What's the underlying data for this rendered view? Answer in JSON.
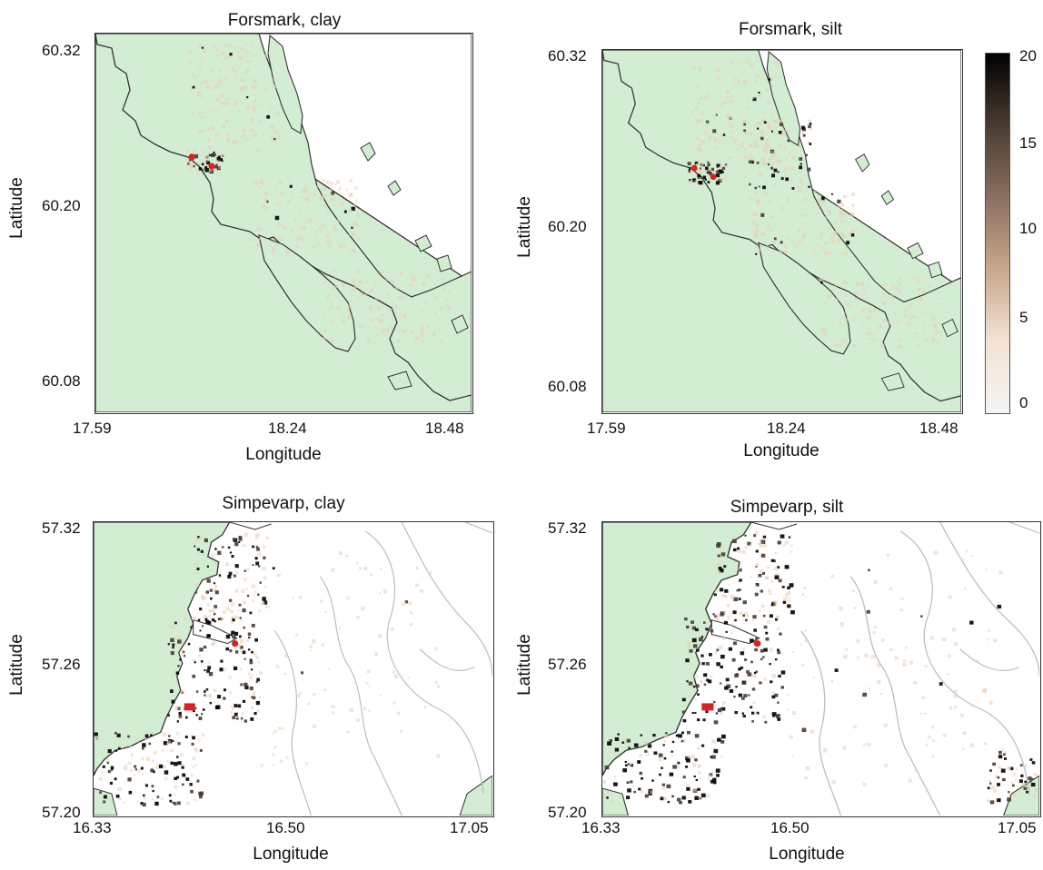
{
  "colors": {
    "land": "#d3edd3",
    "coast": "#333333",
    "site": "#e02020",
    "depth_contour": "#b9bec4"
  },
  "panels": [
    {
      "id": "forsmark-clay",
      "title": "Forsmark, clay",
      "xlabel": "Longitude",
      "ylabel": "Latitude",
      "xticks": [
        "17.59",
        "18.24",
        "18.48"
      ],
      "yticks": [
        "60.32",
        "60.20",
        "60.08"
      ]
    },
    {
      "id": "forsmark-silt",
      "title": "Forsmark, silt",
      "xlabel": "Longitude",
      "ylabel": "Latitude",
      "xticks": [
        "17.59",
        "18.24",
        "18.48"
      ],
      "yticks": [
        "60.32",
        "60.20",
        "60.08"
      ]
    },
    {
      "id": "simpevarp-clay",
      "title": "Simpevarp, clay",
      "xlabel": "Longitude",
      "ylabel": "Latitude",
      "xticks": [
        "16.33",
        "16.50",
        "17.05"
      ],
      "yticks": [
        "57.32",
        "57.26",
        "57.20"
      ]
    },
    {
      "id": "simpevarp-silt",
      "title": "Simpevarp, silt",
      "xlabel": "Longitude",
      "ylabel": "Latitude",
      "xticks": [
        "16.33",
        "16.50",
        "17.05"
      ],
      "yticks": [
        "57.32",
        "57.26",
        "57.20"
      ]
    }
  ],
  "colorbar": {
    "ticks": [
      "20",
      "15",
      "10",
      "5",
      "0"
    ],
    "stops": [
      "#000000",
      "#4a3b30",
      "#8a7060",
      "#c8a88c",
      "#f3e3d3",
      "#f4f4f4"
    ]
  }
}
